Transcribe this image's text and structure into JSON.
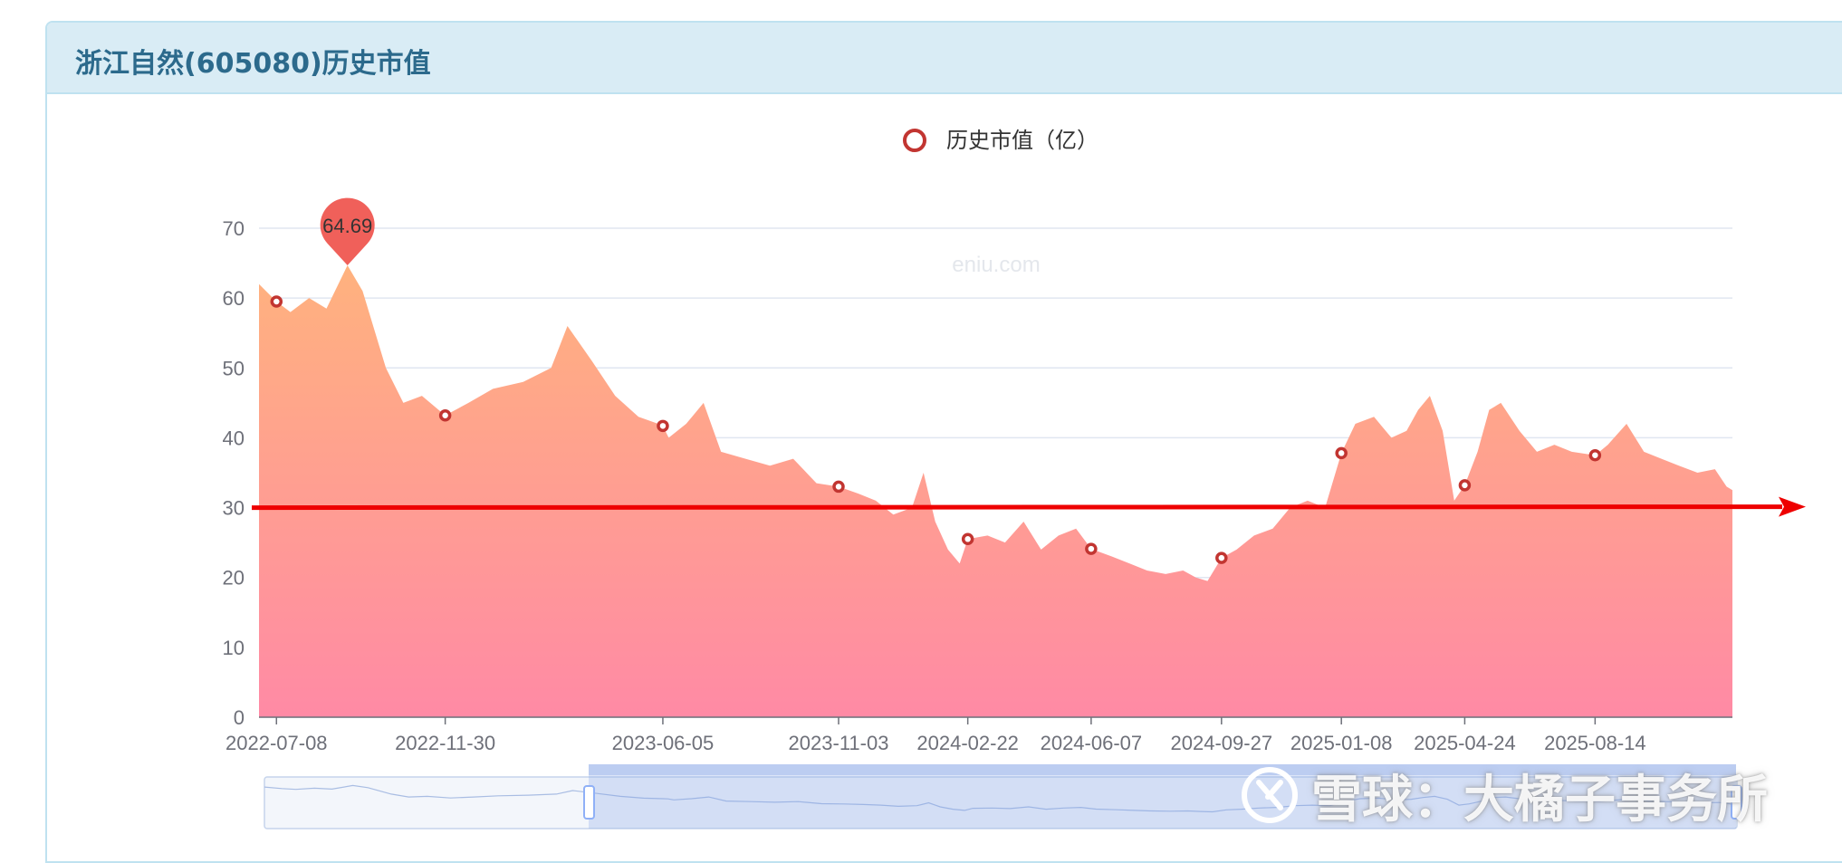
{
  "panel": {
    "title": "浙江自然(605080)历史市值"
  },
  "colors": {
    "area_top": "#ffb27e",
    "area_bottom": "#ff8aa5",
    "marker": "#c23531",
    "pin": "#f0605a",
    "arrow": "#ee0000",
    "grid": "#e0e6f1",
    "axis_text": "#6e7079"
  },
  "watermark": {
    "site": "eniu.com",
    "xueqiu": "雪球：大橘子事务所",
    "xueqiu_icon": "xueqiu-logo-icon"
  },
  "chart_data": {
    "type": "area",
    "legend": {
      "label": "历史市值（亿）",
      "position": "top-center"
    },
    "ylim": [
      0,
      70
    ],
    "yticks": [
      0,
      10,
      20,
      30,
      40,
      50,
      60,
      70
    ],
    "grid": true,
    "xlim": [
      "2022-06-23",
      "2025-12-10"
    ],
    "xticks": [
      "2022-07-08",
      "2022-11-30",
      "2023-06-05",
      "2023-11-03",
      "2024-02-22",
      "2024-06-07",
      "2024-09-27",
      "2025-01-08",
      "2025-04-24",
      "2025-08-14"
    ],
    "max_label": {
      "date": "2022-09-07",
      "value": 64.69
    },
    "reference_line": {
      "value": 30,
      "style": "red arrow"
    },
    "series": [
      {
        "name": "历史市值（亿）",
        "x": [
          "2022-06-23",
          "2022-07-08",
          "2022-07-20",
          "2022-08-05",
          "2022-08-20",
          "2022-09-07",
          "2022-09-20",
          "2022-10-10",
          "2022-10-25",
          "2022-11-10",
          "2022-11-30",
          "2022-12-20",
          "2023-01-10",
          "2023-02-05",
          "2023-03-01",
          "2023-03-15",
          "2023-04-05",
          "2023-04-25",
          "2023-05-15",
          "2023-06-01",
          "2023-06-05",
          "2023-06-10",
          "2023-06-25",
          "2023-07-10",
          "2023-07-25",
          "2023-08-15",
          "2023-09-05",
          "2023-09-25",
          "2023-10-15",
          "2023-11-03",
          "2023-11-20",
          "2023-12-05",
          "2023-12-20",
          "2024-01-05",
          "2024-01-15",
          "2024-01-25",
          "2024-02-05",
          "2024-02-15",
          "2024-02-22",
          "2024-03-10",
          "2024-03-25",
          "2024-04-10",
          "2024-04-25",
          "2024-05-10",
          "2024-05-25",
          "2024-06-07",
          "2024-06-25",
          "2024-07-10",
          "2024-07-25",
          "2024-08-10",
          "2024-08-25",
          "2024-09-05",
          "2024-09-15",
          "2024-09-27",
          "2024-10-10",
          "2024-10-25",
          "2024-11-10",
          "2024-11-25",
          "2024-12-10",
          "2024-12-25",
          "2025-01-08",
          "2025-01-20",
          "2025-02-05",
          "2025-02-20",
          "2025-03-05",
          "2025-03-15",
          "2025-03-25",
          "2025-04-05",
          "2025-04-15",
          "2025-04-24",
          "2025-05-05",
          "2025-05-15",
          "2025-05-25",
          "2025-06-10",
          "2025-06-25",
          "2025-07-10",
          "2025-07-25",
          "2025-08-14",
          "2025-08-25",
          "2025-09-10",
          "2025-09-25",
          "2025-10-10",
          "2025-10-25",
          "2025-11-10",
          "2025-11-25",
          "2025-12-05",
          "2025-12-10"
        ],
        "values": [
          62,
          59.5,
          58,
          60,
          58.5,
          64.69,
          61,
          50,
          45,
          46,
          43.2,
          45,
          47,
          48,
          50,
          56,
          51,
          46,
          43,
          42,
          41.7,
          40,
          42,
          45,
          38,
          37,
          36,
          37,
          33.5,
          33,
          32,
          31,
          29,
          30,
          35,
          28,
          24,
          22,
          25.5,
          26,
          25,
          28,
          24,
          26,
          27,
          24.1,
          23,
          22,
          21,
          20.5,
          21,
          20,
          19.5,
          22.8,
          24,
          26,
          27,
          30,
          31,
          30,
          37.8,
          42,
          43,
          40,
          41,
          44,
          46,
          41,
          31,
          33.2,
          38,
          44,
          45,
          41,
          38,
          39,
          38,
          37.5,
          39,
          42,
          38,
          37,
          36,
          35,
          35.5,
          33,
          32.5
        ]
      }
    ]
  }
}
